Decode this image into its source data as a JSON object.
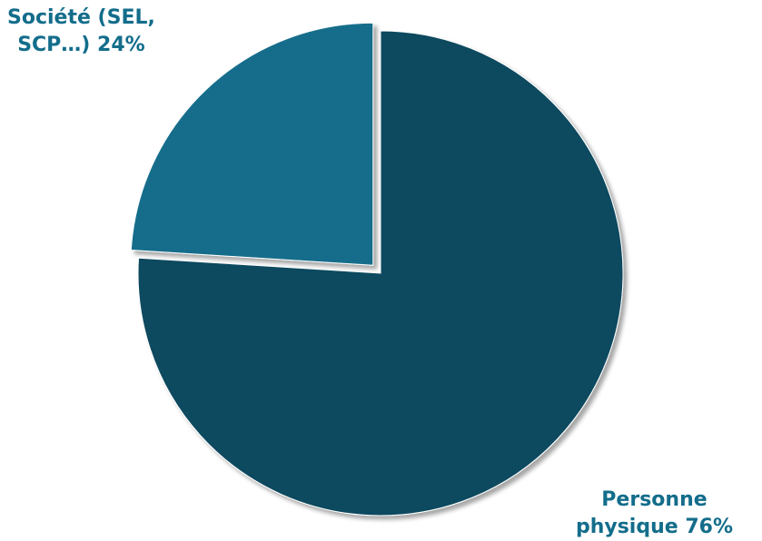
{
  "chart_data": {
    "type": "pie",
    "slices": [
      {
        "label_line1": "Personne",
        "label_line2": "physique 76%",
        "value": 76,
        "color": "#0a4a5e",
        "exploded": false
      },
      {
        "label_line1": "Société (SEL,",
        "label_line2": "SCP…) 24%",
        "value": 24,
        "color": "#136d8b",
        "exploded": true
      }
    ],
    "label_color": "#136d8b",
    "legend": "none",
    "start_angle": "12 o'clock",
    "direction": "clockwise"
  }
}
